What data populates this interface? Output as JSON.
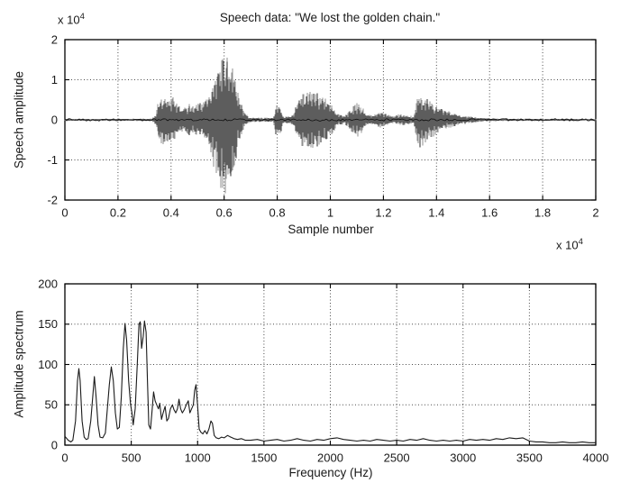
{
  "figure": {
    "background": "#ffffff",
    "axis_color": "#000000",
    "grid_color": "#4a4a4a",
    "waveform_gray": "#8f8f8f",
    "waveform_dark": "#2b2b2b",
    "trace_color": "#1a1a1a"
  },
  "chart_data": [
    {
      "type": "line",
      "title": "Speech data: \"We lost the golden chain.\"",
      "xlabel": "Sample number",
      "ylabel": "Speech amplitude",
      "x_multiplier": {
        "base": "x 10",
        "exp": "4"
      },
      "y_multiplier": {
        "base": "x 10",
        "exp": "4"
      },
      "xlim": [
        0,
        20000
      ],
      "ylim": [
        -20000,
        20000
      ],
      "grid": true,
      "xticks": [
        0,
        2000,
        4000,
        6000,
        8000,
        10000,
        12000,
        14000,
        16000,
        18000,
        20000
      ],
      "xtick_labels": [
        "0",
        "0.2",
        "0.4",
        "0.6",
        "0.8",
        "1",
        "1.2",
        "1.4",
        "1.6",
        "1.8",
        "2"
      ],
      "yticks": [
        -20000,
        -10000,
        0,
        10000,
        20000
      ],
      "ytick_labels": [
        "-2",
        "-1",
        "0",
        "1",
        "2"
      ],
      "description": "speech waveform envelope; pairs of [sample, peak amplitude in units of 1e4]",
      "envelope": [
        [
          0,
          0.025
        ],
        [
          3250,
          0.03
        ],
        [
          3420,
          0.12
        ],
        [
          3520,
          0.5
        ],
        [
          3650,
          0.62
        ],
        [
          3850,
          0.58
        ],
        [
          4050,
          0.6
        ],
        [
          4250,
          0.4
        ],
        [
          4450,
          0.3
        ],
        [
          4650,
          0.42
        ],
        [
          4850,
          0.33
        ],
        [
          5050,
          0.42
        ],
        [
          5250,
          0.45
        ],
        [
          5450,
          0.7
        ],
        [
          5650,
          1.15
        ],
        [
          5850,
          1.5
        ],
        [
          6050,
          1.58
        ],
        [
          6250,
          1.5
        ],
        [
          6450,
          1.05
        ],
        [
          6600,
          0.5
        ],
        [
          6750,
          0.2
        ],
        [
          6950,
          0.06
        ],
        [
          7850,
          0.05
        ],
        [
          7960,
          0.42
        ],
        [
          8120,
          0.36
        ],
        [
          8230,
          0.08
        ],
        [
          8550,
          0.1
        ],
        [
          8750,
          0.45
        ],
        [
          8950,
          0.68
        ],
        [
          9200,
          0.74
        ],
        [
          9500,
          0.68
        ],
        [
          9800,
          0.6
        ],
        [
          10050,
          0.4
        ],
        [
          10250,
          0.15
        ],
        [
          10550,
          0.1
        ],
        [
          10800,
          0.3
        ],
        [
          11000,
          0.45
        ],
        [
          11200,
          0.32
        ],
        [
          11400,
          0.12
        ],
        [
          11650,
          0.14
        ],
        [
          11850,
          0.2
        ],
        [
          12050,
          0.16
        ],
        [
          12350,
          0.09
        ],
        [
          12650,
          0.15
        ],
        [
          12900,
          0.12
        ],
        [
          13150,
          0.08
        ],
        [
          13250,
          0.5
        ],
        [
          13380,
          0.72
        ],
        [
          13550,
          0.6
        ],
        [
          13800,
          0.45
        ],
        [
          14100,
          0.32
        ],
        [
          14500,
          0.2
        ],
        [
          14900,
          0.12
        ],
        [
          15300,
          0.08
        ],
        [
          15800,
          0.04
        ],
        [
          16500,
          0.03
        ],
        [
          20000,
          0.025
        ]
      ]
    },
    {
      "type": "line",
      "title": "",
      "xlabel": "Frequency (Hz)",
      "ylabel": "Amplitude spectrum",
      "xlim": [
        0,
        4000
      ],
      "ylim": [
        0,
        200
      ],
      "grid": true,
      "xticks": [
        0,
        500,
        1000,
        1500,
        2000,
        2500,
        3000,
        3500,
        4000
      ],
      "xtick_labels": [
        "0",
        "500",
        "1000",
        "1500",
        "2000",
        "2500",
        "3000",
        "3500",
        "4000"
      ],
      "yticks": [
        0,
        50,
        100,
        150,
        200
      ],
      "ytick_labels": [
        "0",
        "50",
        "100",
        "150",
        "200"
      ],
      "description": "amplitude spectrum; pairs of [frequency Hz, amplitude]",
      "points": [
        [
          0,
          11
        ],
        [
          25,
          6
        ],
        [
          45,
          4
        ],
        [
          60,
          6
        ],
        [
          80,
          30
        ],
        [
          95,
          80
        ],
        [
          105,
          95
        ],
        [
          115,
          80
        ],
        [
          130,
          30
        ],
        [
          145,
          10
        ],
        [
          160,
          7
        ],
        [
          175,
          8
        ],
        [
          195,
          30
        ],
        [
          210,
          60
        ],
        [
          222,
          85
        ],
        [
          235,
          60
        ],
        [
          250,
          25
        ],
        [
          265,
          10
        ],
        [
          285,
          9
        ],
        [
          305,
          15
        ],
        [
          320,
          45
        ],
        [
          335,
          75
        ],
        [
          350,
          97
        ],
        [
          365,
          80
        ],
        [
          380,
          40
        ],
        [
          395,
          20
        ],
        [
          410,
          22
        ],
        [
          425,
          60
        ],
        [
          440,
          120
        ],
        [
          453,
          151
        ],
        [
          465,
          130
        ],
        [
          480,
          80
        ],
        [
          495,
          50
        ],
        [
          505,
          40
        ],
        [
          515,
          25
        ],
        [
          530,
          45
        ],
        [
          545,
          100
        ],
        [
          558,
          150
        ],
        [
          568,
          153
        ],
        [
          578,
          120
        ],
        [
          590,
          135
        ],
        [
          600,
          154
        ],
        [
          612,
          140
        ],
        [
          622,
          80
        ],
        [
          632,
          25
        ],
        [
          645,
          20
        ],
        [
          658,
          45
        ],
        [
          668,
          66
        ],
        [
          680,
          55
        ],
        [
          692,
          50
        ],
        [
          705,
          45
        ],
        [
          715,
          52
        ],
        [
          728,
          32
        ],
        [
          740,
          40
        ],
        [
          755,
          48
        ],
        [
          768,
          30
        ],
        [
          780,
          33
        ],
        [
          795,
          45
        ],
        [
          810,
          50
        ],
        [
          822,
          44
        ],
        [
          835,
          40
        ],
        [
          848,
          45
        ],
        [
          860,
          57
        ],
        [
          872,
          45
        ],
        [
          885,
          40
        ],
        [
          900,
          44
        ],
        [
          915,
          50
        ],
        [
          930,
          55
        ],
        [
          942,
          40
        ],
        [
          955,
          45
        ],
        [
          968,
          50
        ],
        [
          978,
          68
        ],
        [
          988,
          75
        ],
        [
          1000,
          48
        ],
        [
          1012,
          20
        ],
        [
          1025,
          16
        ],
        [
          1040,
          14
        ],
        [
          1055,
          18
        ],
        [
          1070,
          14
        ],
        [
          1085,
          20
        ],
        [
          1100,
          30
        ],
        [
          1112,
          27
        ],
        [
          1125,
          12
        ],
        [
          1140,
          9
        ],
        [
          1160,
          8
        ],
        [
          1180,
          10
        ],
        [
          1200,
          9
        ],
        [
          1225,
          12
        ],
        [
          1250,
          10
        ],
        [
          1275,
          8
        ],
        [
          1300,
          7
        ],
        [
          1330,
          8
        ],
        [
          1360,
          6
        ],
        [
          1400,
          6
        ],
        [
          1450,
          7
        ],
        [
          1500,
          5
        ],
        [
          1550,
          6
        ],
        [
          1600,
          7
        ],
        [
          1650,
          5
        ],
        [
          1700,
          6
        ],
        [
          1750,
          8
        ],
        [
          1800,
          6
        ],
        [
          1850,
          5
        ],
        [
          1900,
          7
        ],
        [
          1950,
          6
        ],
        [
          2000,
          8
        ],
        [
          2050,
          9
        ],
        [
          2100,
          7
        ],
        [
          2150,
          6
        ],
        [
          2200,
          5
        ],
        [
          2250,
          6
        ],
        [
          2300,
          5
        ],
        [
          2350,
          7
        ],
        [
          2400,
          6
        ],
        [
          2450,
          5
        ],
        [
          2500,
          6
        ],
        [
          2550,
          5
        ],
        [
          2600,
          7
        ],
        [
          2650,
          6
        ],
        [
          2700,
          8
        ],
        [
          2750,
          6
        ],
        [
          2800,
          5
        ],
        [
          2850,
          6
        ],
        [
          2900,
          5
        ],
        [
          2950,
          6
        ],
        [
          3000,
          5
        ],
        [
          3050,
          7
        ],
        [
          3100,
          6
        ],
        [
          3150,
          7
        ],
        [
          3200,
          6
        ],
        [
          3250,
          8
        ],
        [
          3300,
          7
        ],
        [
          3350,
          9
        ],
        [
          3400,
          8
        ],
        [
          3450,
          9
        ],
        [
          3500,
          5
        ],
        [
          3550,
          4
        ],
        [
          3600,
          4
        ],
        [
          3650,
          3
        ],
        [
          3700,
          3
        ],
        [
          3750,
          4
        ],
        [
          3800,
          3
        ],
        [
          3850,
          3
        ],
        [
          3900,
          4
        ],
        [
          3950,
          3
        ],
        [
          4000,
          3
        ]
      ]
    }
  ]
}
